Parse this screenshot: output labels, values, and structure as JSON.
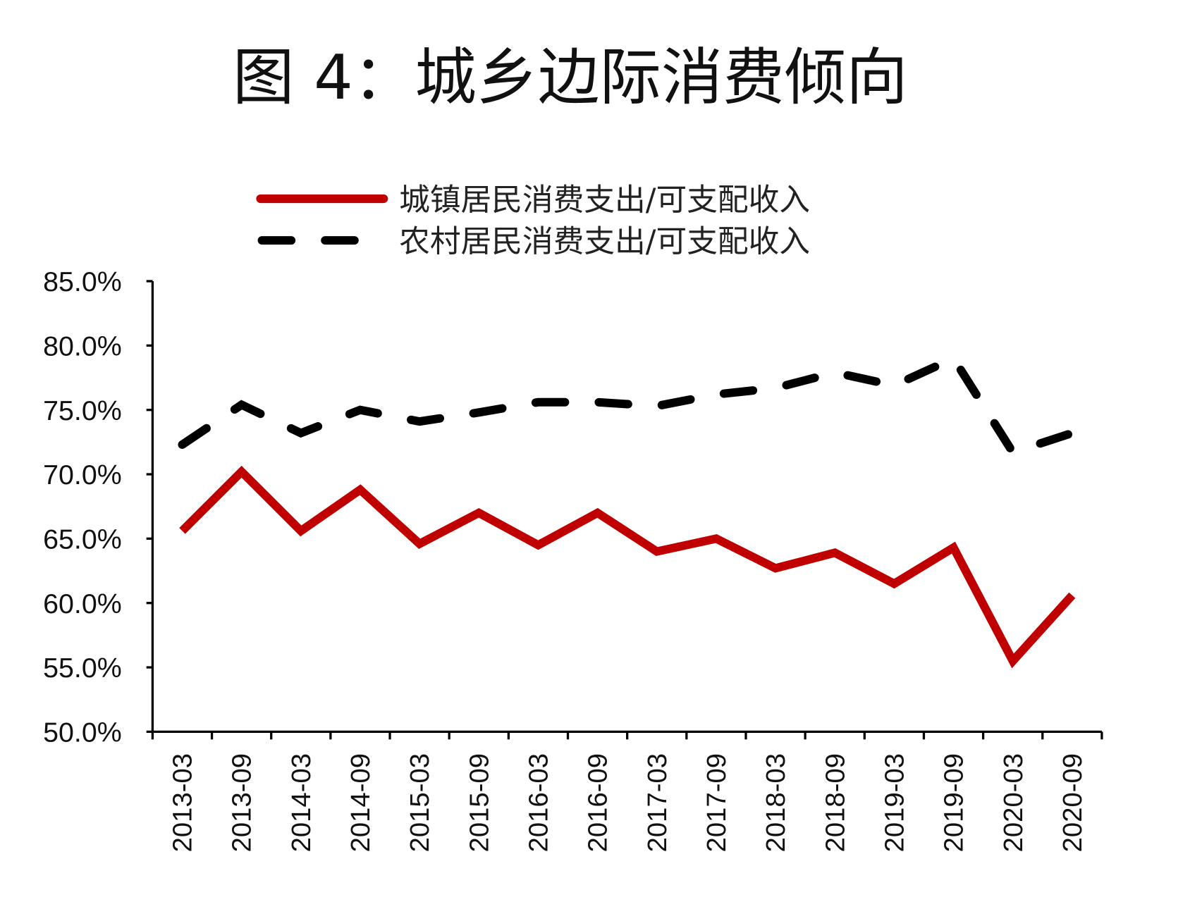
{
  "chart_data": {
    "type": "line",
    "title": "图 4：城乡边际消费倾向",
    "xlabel": "",
    "ylabel": "",
    "ylim": [
      50,
      85
    ],
    "y_ticks": [
      "85.0%",
      "80.0%",
      "75.0%",
      "70.0%",
      "65.0%",
      "60.0%",
      "55.0%",
      "50.0%"
    ],
    "y_tick_values": [
      85,
      80,
      75,
      70,
      65,
      60,
      55,
      50
    ],
    "grid": false,
    "legend_position": "top",
    "categories": [
      "2013-03",
      "2013-09",
      "2014-03",
      "2014-09",
      "2015-03",
      "2015-09",
      "2016-03",
      "2016-09",
      "2017-03",
      "2017-09",
      "2018-03",
      "2018-09",
      "2019-03",
      "2019-09",
      "2020-03",
      "2020-09"
    ],
    "series": [
      {
        "name": "城镇居民消费支出/可支配收入",
        "color": "#c00000",
        "style": "solid",
        "values": [
          65.6,
          70.2,
          65.6,
          68.8,
          64.6,
          67.0,
          64.5,
          67.0,
          64.0,
          65.0,
          62.7,
          63.9,
          61.5,
          64.3,
          55.5,
          60.6
        ]
      },
      {
        "name": "农村居民消费支出/可支配收入",
        "color": "#000000",
        "style": "dashed",
        "values": [
          72.3,
          75.4,
          73.2,
          75.0,
          74.1,
          74.8,
          75.6,
          75.6,
          75.3,
          76.2,
          76.7,
          77.9,
          76.9,
          79.0,
          71.7,
          73.2
        ]
      }
    ]
  }
}
